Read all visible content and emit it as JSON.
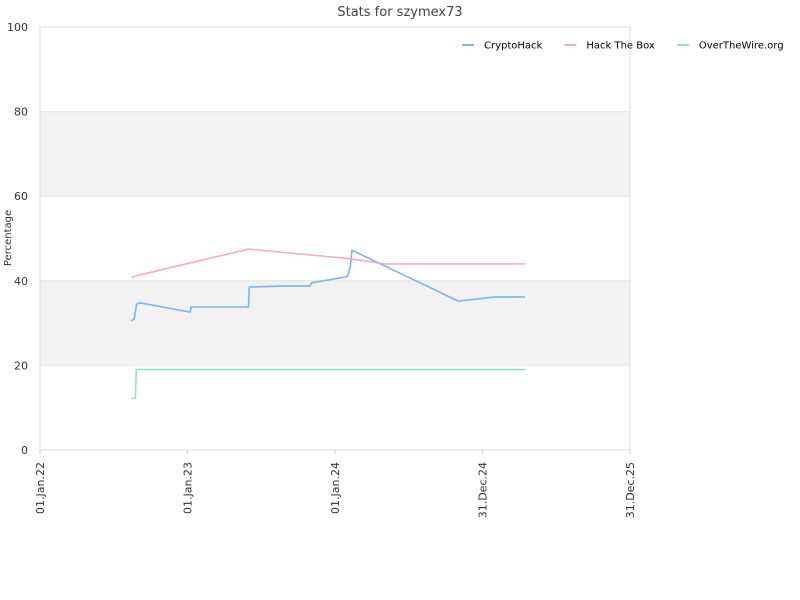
{
  "chart_data": {
    "type": "line",
    "title": "Stats for szymex73",
    "ylabel": "Percentage",
    "xlabel": "",
    "ylim": [
      0,
      100
    ],
    "xlim": [
      "2022-01-01",
      "2025-12-31"
    ],
    "yticks": [
      "0",
      "20",
      "40",
      "60",
      "80",
      "100"
    ],
    "xticks": [
      {
        "date": "2022-01-01",
        "label": "01.Jan.22"
      },
      {
        "date": "2023-01-01",
        "label": "01.Jan.23"
      },
      {
        "date": "2024-01-01",
        "label": "01.Jan.24"
      },
      {
        "date": "2024-12-31",
        "label": "31.Dec.24"
      },
      {
        "date": "2025-12-31",
        "label": "31.Dec.25"
      }
    ],
    "grid": "horizontal",
    "legend_position": "top-right",
    "series": [
      {
        "name": "CryptoHack",
        "color": "#7cb5ec",
        "points": [
          [
            "2022-08-15",
            30.5
          ],
          [
            "2022-08-22",
            31.0
          ],
          [
            "2022-08-28",
            34.5
          ],
          [
            "2022-09-05",
            34.8
          ],
          [
            "2023-01-08",
            32.6
          ],
          [
            "2023-01-10",
            33.8
          ],
          [
            "2023-06-01",
            33.8
          ],
          [
            "2023-06-03",
            38.5
          ],
          [
            "2023-09-01",
            38.8
          ],
          [
            "2023-11-01",
            38.8
          ],
          [
            "2023-11-03",
            39.5
          ],
          [
            "2024-02-01",
            41.0
          ],
          [
            "2024-02-08",
            43.5
          ],
          [
            "2024-02-12",
            47.2
          ],
          [
            "2024-11-01",
            35.2
          ],
          [
            "2025-02-01",
            36.2
          ],
          [
            "2025-04-15",
            36.2
          ]
        ]
      },
      {
        "name": "Hack The Box",
        "color": "#f7a8cf",
        "points": [
          [
            "2022-08-15",
            40.8
          ],
          [
            "2022-09-01",
            41.3
          ],
          [
            "2023-06-01",
            47.5
          ],
          [
            "2024-02-01",
            45.3
          ],
          [
            "2024-05-01",
            44.0
          ],
          [
            "2025-04-15",
            44.0
          ]
        ]
      },
      {
        "name": "OverTheWire.org",
        "color": "#8fe1c8",
        "points": [
          [
            "2022-08-15",
            12.2
          ],
          [
            "2022-08-25",
            12.2
          ],
          [
            "2022-08-27",
            19.0
          ],
          [
            "2025-04-15",
            19.0
          ]
        ]
      }
    ]
  }
}
